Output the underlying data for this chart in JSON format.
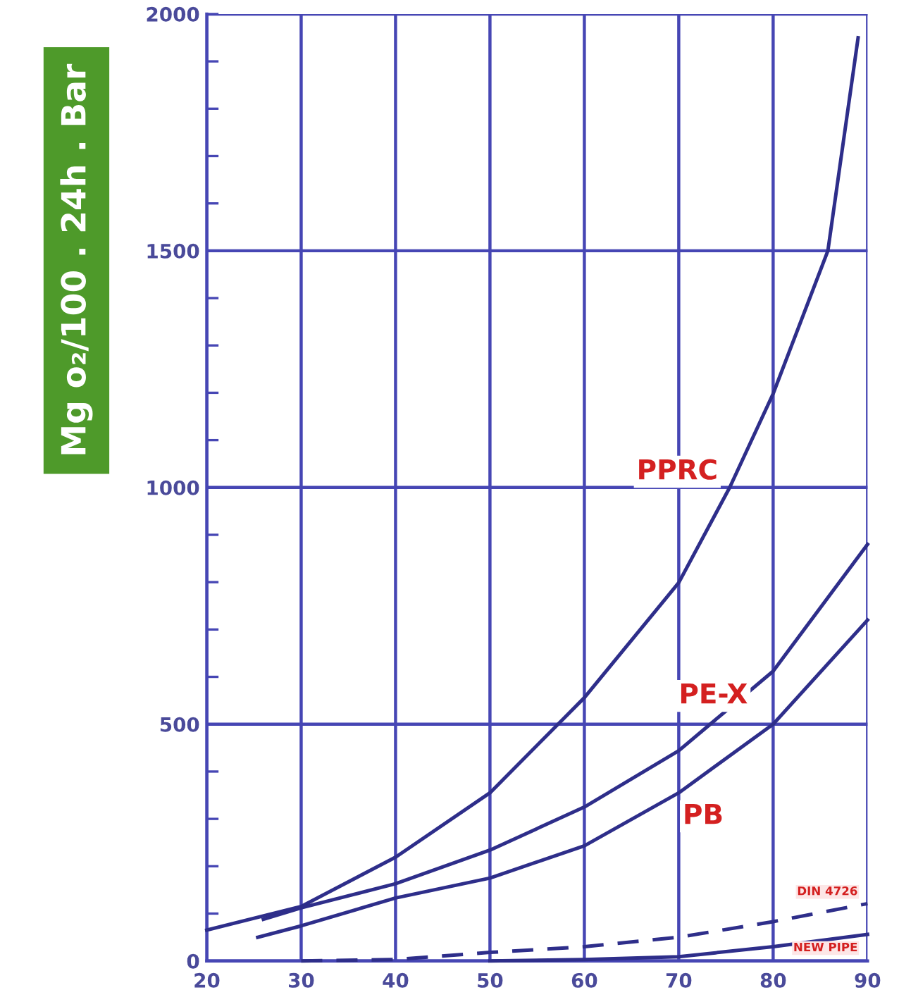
{
  "chart_data": {
    "type": "line",
    "ylabel": "Mg o₂/100 . 24h . Bar",
    "xlim": [
      20,
      90
    ],
    "xticks": [
      20,
      30,
      40,
      50,
      60,
      70,
      80,
      90
    ],
    "ylim": [
      0,
      2000
    ],
    "yticks": [
      0,
      {
        "value": 100,
        "label": null
      },
      {
        "value": 200,
        "label": null
      },
      {
        "value": 300,
        "label": null
      },
      {
        "value": 400,
        "label": null
      },
      500,
      {
        "value": 600,
        "label": null
      },
      {
        "value": 700,
        "label": null
      },
      {
        "value": 800,
        "label": null
      },
      {
        "value": 900,
        "label": null
      },
      1000,
      {
        "value": 1100,
        "label": null
      },
      {
        "value": 1200,
        "label": null
      },
      {
        "value": 1300,
        "label": null
      },
      {
        "value": 1400,
        "label": null
      },
      1500,
      {
        "value": 1600,
        "label": null
      },
      {
        "value": 1700,
        "label": null
      },
      {
        "value": 1800,
        "label": null
      },
      {
        "value": 1900,
        "label": null
      },
      2000
    ],
    "grid": true,
    "legend": false,
    "marker": "none",
    "series": [
      {
        "name": "PPRC",
        "color": "#2e2e8a",
        "x": [
          20,
          30,
          40,
          50,
          60,
          70,
          75.4,
          80,
          85.8,
          89
        ],
        "values": [
          65,
          115,
          219,
          355,
          556,
          799,
          1000,
          1198,
          1500,
          1950
        ]
      },
      {
        "name": "PE-X",
        "color": "#2e2e8a",
        "x": [
          26,
          30,
          40,
          50,
          60,
          70,
          80,
          90
        ],
        "values": [
          88,
          112,
          163,
          234,
          325,
          444,
          612,
          880
        ]
      },
      {
        "name": "PB",
        "color": "#2e2e8a",
        "x": [
          25.4,
          30,
          40,
          50,
          60,
          70,
          80,
          90
        ],
        "values": [
          50,
          74,
          133,
          175,
          243,
          355,
          500,
          720
        ]
      },
      {
        "name": "DIN 4726",
        "color": "#2e2e8a",
        "line_style": "dashed",
        "x": [
          30,
          40,
          50,
          60,
          70,
          80,
          90
        ],
        "values": [
          0,
          3,
          18,
          30,
          50,
          83,
          121
        ]
      },
      {
        "name": "NEW PIPE",
        "color": "#2e2e8a",
        "x": [
          50,
          60,
          70,
          80,
          90
        ],
        "values": [
          0,
          3,
          9,
          30,
          56
        ]
      }
    ]
  }
}
